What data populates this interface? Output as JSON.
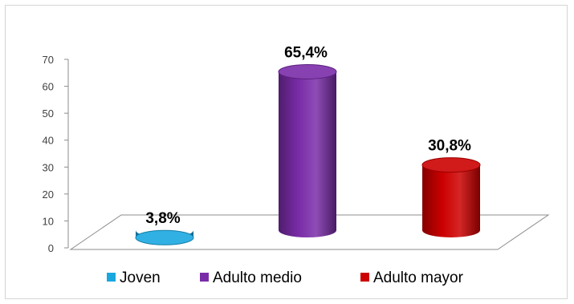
{
  "chart_data": {
    "type": "bar",
    "categories": [
      "Joven",
      "Adulto medio",
      "Adulto mayor"
    ],
    "values": [
      3.8,
      65.4,
      30.8
    ],
    "data_labels": [
      "3,8%",
      "65,4%",
      "30,8%"
    ],
    "colors": [
      "#1aa7e0",
      "#7a2ca8",
      "#cc0000"
    ],
    "ylim": [
      0,
      70
    ],
    "yticks": [
      "0",
      "10",
      "20",
      "30",
      "40",
      "50",
      "60",
      "70"
    ],
    "legend": [
      "Joven",
      "Adulto medio",
      "Adulto mayor"
    ],
    "legend_position": "bottom",
    "style": "3d-cylinder",
    "grid": false
  }
}
